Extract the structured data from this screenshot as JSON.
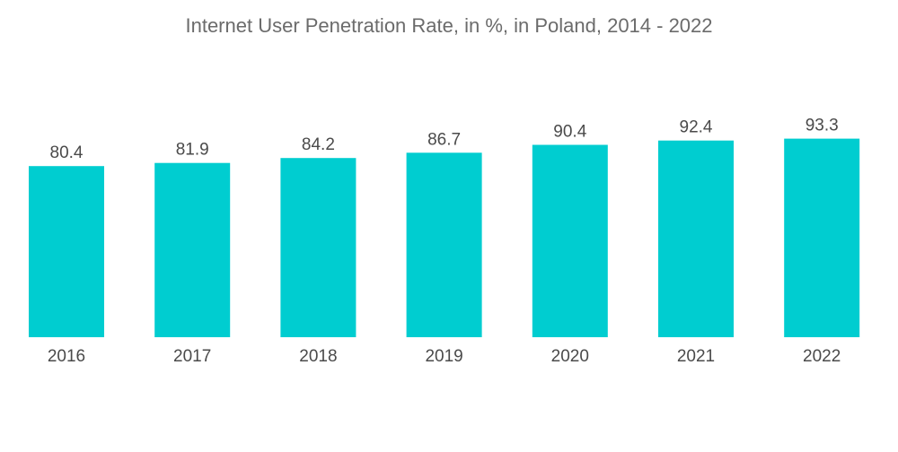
{
  "chart_data": {
    "type": "bar",
    "title": "Internet User Penetration Rate, in %,  in Poland, 2014 - 2022",
    "xlabel": "",
    "ylabel": "",
    "categories": [
      "2016",
      "2017",
      "2018",
      "2019",
      "2020",
      "2021",
      "2022"
    ],
    "values": [
      80.4,
      81.9,
      84.2,
      86.7,
      90.4,
      92.4,
      93.3
    ],
    "value_labels": [
      "80.4",
      "81.9",
      "84.2",
      "86.7",
      "90.4",
      "92.4",
      "93.3"
    ],
    "ylim": [
      0,
      100
    ],
    "grid": false,
    "legend": "none",
    "colors": {
      "bar": "#00CDD0",
      "text": "#4a4a4a",
      "title": "#6b6b6b"
    }
  }
}
